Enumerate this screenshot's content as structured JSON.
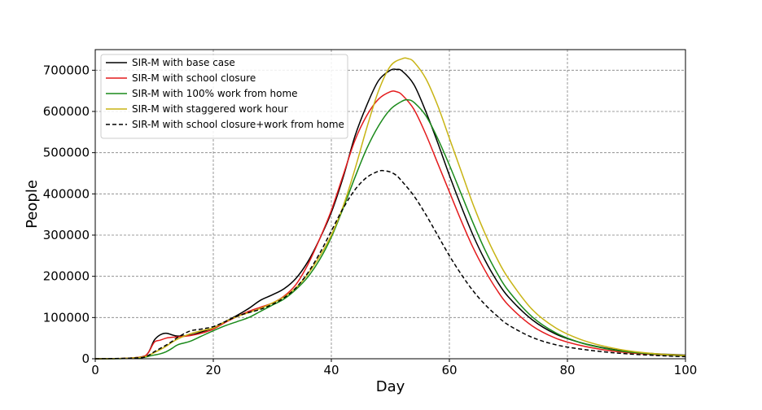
{
  "chart_data": {
    "type": "line",
    "title": "",
    "xlabel": "Day",
    "ylabel": "People",
    "xlim": [
      0,
      100
    ],
    "ylim": [
      0,
      750000
    ],
    "xticks": [
      0,
      20,
      40,
      60,
      80,
      100
    ],
    "yticks": [
      0,
      100000,
      200000,
      300000,
      400000,
      500000,
      600000,
      700000
    ],
    "grid": true,
    "legend_position": "top-left",
    "series": [
      {
        "name": "SIR-M with base case",
        "color": "#000000",
        "dash": "solid",
        "x": [
          0,
          5,
          8,
          9,
          10,
          11,
          12,
          13,
          14,
          16,
          18,
          20,
          22,
          24,
          26,
          28,
          30,
          32,
          34,
          36,
          38,
          40,
          42,
          44,
          46,
          48,
          50,
          51,
          52,
          54,
          56,
          58,
          60,
          62,
          64,
          66,
          68,
          70,
          74,
          78,
          82,
          86,
          90,
          95,
          100
        ],
        "y": [
          0,
          1000,
          5000,
          15000,
          45000,
          58000,
          62000,
          58000,
          55000,
          57000,
          65000,
          75000,
          90000,
          105000,
          122000,
          142000,
          155000,
          170000,
          195000,
          235000,
          290000,
          355000,
          440000,
          540000,
          615000,
          675000,
          700000,
          702000,
          698000,
          665000,
          600000,
          525000,
          445000,
          370000,
          300000,
          240000,
          190000,
          150000,
          95000,
          60000,
          40000,
          27000,
          18000,
          12000,
          9000
        ]
      },
      {
        "name": "SIR-M with school closure",
        "color": "#e41a1c",
        "dash": "solid",
        "x": [
          0,
          5,
          8,
          9,
          10,
          11,
          12,
          13,
          14,
          16,
          18,
          20,
          22,
          24,
          26,
          28,
          30,
          32,
          34,
          36,
          38,
          40,
          42,
          44,
          46,
          48,
          50,
          51,
          52,
          54,
          56,
          58,
          60,
          62,
          64,
          66,
          68,
          70,
          74,
          78,
          82,
          86,
          90,
          95,
          100
        ],
        "y": [
          0,
          1000,
          5000,
          15000,
          40000,
          45000,
          50000,
          52000,
          53000,
          56000,
          62000,
          72000,
          88000,
          102000,
          115000,
          125000,
          135000,
          152000,
          180000,
          228000,
          290000,
          360000,
          445000,
          530000,
          590000,
          630000,
          648000,
          648000,
          640000,
          605000,
          545000,
          475000,
          405000,
          335000,
          270000,
          215000,
          168000,
          130000,
          80000,
          50000,
          33000,
          22000,
          15000,
          10000,
          7000
        ]
      },
      {
        "name": "SIR-M with 100% work from home",
        "color": "#1a8a1a",
        "dash": "solid",
        "x": [
          0,
          5,
          8,
          9,
          10,
          11,
          12,
          13,
          14,
          16,
          18,
          20,
          22,
          24,
          26,
          28,
          30,
          32,
          34,
          36,
          38,
          40,
          42,
          44,
          46,
          48,
          50,
          52,
          53,
          54,
          56,
          58,
          60,
          62,
          64,
          66,
          68,
          70,
          74,
          78,
          82,
          86,
          90,
          95,
          100
        ],
        "y": [
          0,
          500,
          3000,
          6000,
          9000,
          12000,
          17000,
          25000,
          34000,
          42000,
          55000,
          68000,
          80000,
          90000,
          100000,
          115000,
          130000,
          145000,
          168000,
          198000,
          240000,
          295000,
          365000,
          440000,
          510000,
          565000,
          605000,
          625000,
          628000,
          622000,
          590000,
          535000,
          470000,
          400000,
          330000,
          265000,
          210000,
          165000,
          102000,
          63000,
          40000,
          26000,
          17000,
          11000,
          7000
        ]
      },
      {
        "name": "SIR-M with staggered work hour",
        "color": "#c8b414",
        "dash": "solid",
        "x": [
          0,
          5,
          8,
          9,
          10,
          11,
          12,
          13,
          14,
          16,
          18,
          20,
          22,
          24,
          26,
          28,
          30,
          32,
          34,
          36,
          38,
          40,
          42,
          44,
          46,
          48,
          50,
          52,
          53,
          54,
          56,
          58,
          60,
          62,
          64,
          66,
          68,
          70,
          74,
          78,
          82,
          86,
          90,
          95,
          100
        ],
        "y": [
          0,
          1000,
          4000,
          8000,
          15000,
          22000,
          30000,
          40000,
          48000,
          60000,
          68000,
          75000,
          90000,
          102000,
          112000,
          122000,
          135000,
          150000,
          172000,
          205000,
          248000,
          300000,
          370000,
          460000,
          560000,
          650000,
          710000,
          728000,
          728000,
          720000,
          680000,
          615000,
          535000,
          455000,
          375000,
          305000,
          245000,
          195000,
          120000,
          75000,
          48000,
          31000,
          20000,
          12000,
          8000
        ]
      },
      {
        "name": "SIR-M with school closure+work from home",
        "color": "#000000",
        "dash": "dashed",
        "x": [
          0,
          5,
          8,
          9,
          10,
          11,
          12,
          13,
          14,
          16,
          18,
          20,
          22,
          24,
          26,
          28,
          30,
          32,
          34,
          36,
          38,
          40,
          42,
          44,
          46,
          48,
          49,
          50,
          51,
          52,
          54,
          56,
          58,
          60,
          62,
          64,
          66,
          68,
          70,
          74,
          78,
          82,
          86,
          90,
          95,
          100
        ],
        "y": [
          0,
          1000,
          3000,
          8000,
          17000,
          25000,
          33000,
          42000,
          52000,
          67000,
          72000,
          78000,
          90000,
          103000,
          112000,
          120000,
          132000,
          148000,
          172000,
          208000,
          255000,
          310000,
          365000,
          410000,
          440000,
          455000,
          456000,
          453000,
          445000,
          430000,
          395000,
          350000,
          300000,
          250000,
          205000,
          165000,
          132000,
          105000,
          82000,
          52000,
          34000,
          24000,
          17000,
          12000,
          8000,
          5000
        ]
      }
    ]
  }
}
